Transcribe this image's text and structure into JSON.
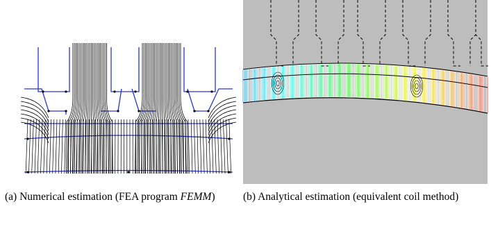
{
  "figure": {
    "subfigures": [
      {
        "id": "a",
        "caption_prefix": "(a) Numerical estimation (FEA program ",
        "caption_program": "FEMM",
        "caption_suffix": ")"
      },
      {
        "id": "b",
        "caption_text": "(b) Analytical estimation (equivalent coil method)"
      }
    ]
  },
  "colors": {
    "flux_lines": "#000000",
    "geometry_outline": "#2b35c9",
    "background_gray": "#bdbdbd",
    "rainbow_start": "#2aa0ff",
    "rainbow_end": "#ff2a2a"
  },
  "icons": []
}
